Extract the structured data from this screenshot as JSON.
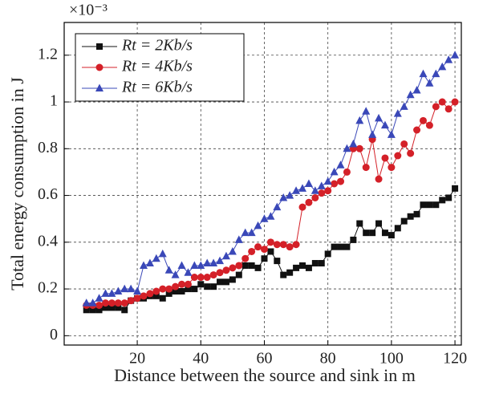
{
  "chart_data": {
    "type": "line",
    "x_label": "Distance between the source and sink in m",
    "y_label": "Total energy consumption in J",
    "y_multiplier": "×10⁻³",
    "x": [
      4,
      6,
      8,
      10,
      12,
      14,
      16,
      18,
      20,
      22,
      24,
      26,
      28,
      30,
      32,
      34,
      36,
      38,
      40,
      42,
      44,
      46,
      48,
      50,
      52,
      54,
      56,
      58,
      60,
      62,
      64,
      66,
      68,
      70,
      72,
      74,
      76,
      78,
      80,
      82,
      84,
      86,
      88,
      90,
      92,
      94,
      96,
      98,
      100,
      102,
      104,
      106,
      108,
      110,
      112,
      114,
      116,
      118,
      120
    ],
    "series": [
      {
        "name": "Rt = 2Kb/s",
        "color": "#111111",
        "marker": "square",
        "values": [
          0.11,
          0.11,
          0.11,
          0.12,
          0.12,
          0.12,
          0.11,
          0.15,
          0.16,
          0.16,
          0.17,
          0.17,
          0.16,
          0.18,
          0.19,
          0.19,
          0.2,
          0.2,
          0.22,
          0.21,
          0.21,
          0.23,
          0.23,
          0.24,
          0.26,
          0.3,
          0.3,
          0.29,
          0.33,
          0.36,
          0.32,
          0.26,
          0.27,
          0.29,
          0.3,
          0.29,
          0.31,
          0.31,
          0.35,
          0.38,
          0.38,
          0.38,
          0.41,
          0.48,
          0.44,
          0.44,
          0.48,
          0.44,
          0.43,
          0.46,
          0.49,
          0.51,
          0.52,
          0.56,
          0.56,
          0.56,
          0.58,
          0.59,
          0.63
        ]
      },
      {
        "name": "Rt = 4Kb/s",
        "color": "#d42028",
        "marker": "circle",
        "values": [
          0.13,
          0.13,
          0.13,
          0.14,
          0.14,
          0.14,
          0.14,
          0.15,
          0.16,
          0.17,
          0.18,
          0.19,
          0.2,
          0.2,
          0.21,
          0.22,
          0.22,
          0.25,
          0.25,
          0.25,
          0.26,
          0.27,
          0.28,
          0.29,
          0.3,
          0.33,
          0.36,
          0.38,
          0.37,
          0.4,
          0.39,
          0.39,
          0.38,
          0.39,
          0.55,
          0.57,
          0.59,
          0.61,
          0.62,
          0.65,
          0.66,
          0.7,
          0.8,
          0.8,
          0.72,
          0.84,
          0.67,
          0.76,
          0.72,
          0.77,
          0.82,
          0.78,
          0.88,
          0.92,
          0.9,
          0.98,
          1.0,
          0.97,
          1.0
        ]
      },
      {
        "name": "Rt = 6Kb/s",
        "color": "#3a48b8",
        "marker": "triangle",
        "values": [
          0.14,
          0.14,
          0.16,
          0.18,
          0.18,
          0.19,
          0.2,
          0.2,
          0.19,
          0.3,
          0.31,
          0.33,
          0.35,
          0.28,
          0.26,
          0.3,
          0.27,
          0.3,
          0.3,
          0.31,
          0.31,
          0.32,
          0.34,
          0.36,
          0.41,
          0.44,
          0.44,
          0.47,
          0.5,
          0.51,
          0.55,
          0.59,
          0.6,
          0.62,
          0.63,
          0.65,
          0.62,
          0.64,
          0.66,
          0.7,
          0.73,
          0.8,
          0.82,
          0.92,
          0.96,
          0.86,
          0.93,
          0.9,
          0.86,
          0.95,
          0.98,
          1.03,
          1.05,
          1.12,
          1.08,
          1.12,
          1.15,
          1.18,
          1.2
        ]
      }
    ],
    "xlim": [
      -3,
      122
    ],
    "ylim": [
      -0.04,
      1.34
    ],
    "xticks": [
      20,
      40,
      60,
      80,
      100,
      120
    ],
    "yticks": [
      0,
      0.2,
      0.4,
      0.6,
      0.8,
      1,
      1.2
    ],
    "grid": true,
    "legend": "upper left"
  }
}
